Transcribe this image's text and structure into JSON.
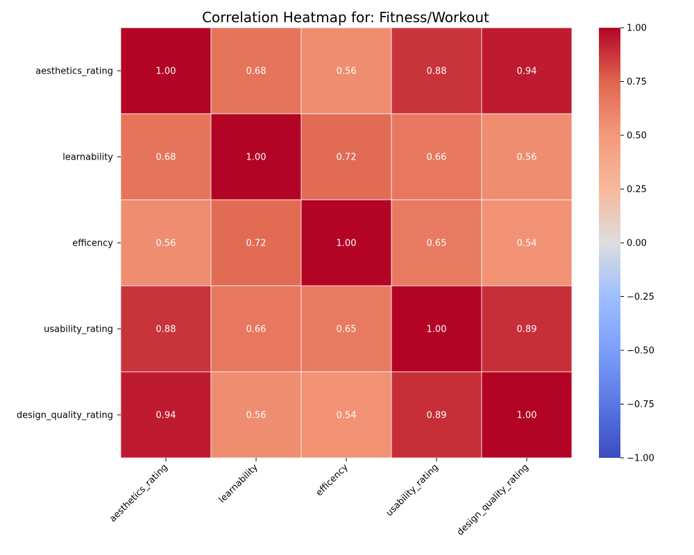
{
  "chart_data": {
    "type": "heatmap",
    "title": "Correlation Heatmap for: Fitness/Workout",
    "rows": [
      "aesthetics_rating",
      "learnability",
      "efficency",
      "usability_rating",
      "design_quality_rating"
    ],
    "columns": [
      "aesthetics_rating",
      "learnability",
      "efficency",
      "usability_rating",
      "design_quality_rating"
    ],
    "values": [
      [
        1.0,
        0.68,
        0.56,
        0.88,
        0.94
      ],
      [
        0.68,
        1.0,
        0.72,
        0.66,
        0.56
      ],
      [
        0.56,
        0.72,
        1.0,
        0.65,
        0.54
      ],
      [
        0.88,
        0.66,
        0.65,
        1.0,
        0.89
      ],
      [
        0.94,
        0.56,
        0.54,
        0.89,
        1.0
      ]
    ],
    "value_format": "0.00",
    "colormap": "coolwarm",
    "colorbar": {
      "range": [
        -1,
        1
      ],
      "ticks": [
        1.0,
        0.75,
        0.5,
        0.25,
        0.0,
        -0.25,
        -0.5,
        -0.75,
        -1.0
      ],
      "tick_labels": [
        "1.00",
        "0.75",
        "0.50",
        "0.25",
        "0.00",
        "−0.25",
        "−0.50",
        "−0.75",
        "−1.00"
      ]
    }
  }
}
